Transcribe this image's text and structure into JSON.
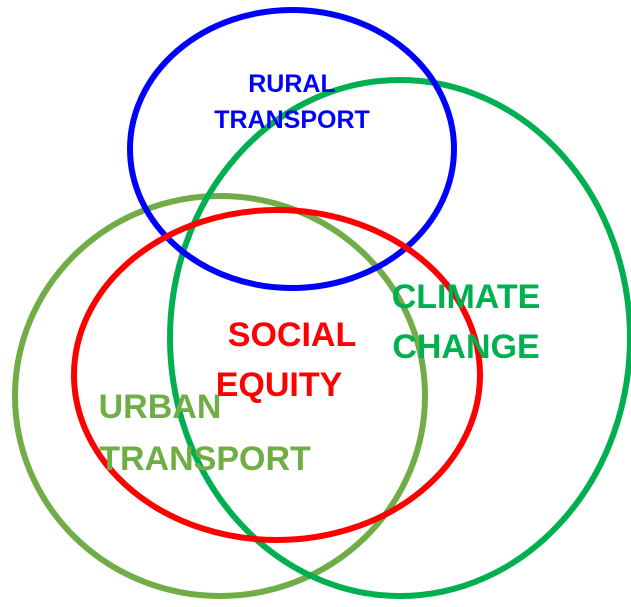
{
  "nodes": [
    {
      "label_lines": [
        "RURAL",
        "TRANSPORT"
      ]
    },
    {
      "label_lines": [
        "CLIMATE",
        "CHANGE"
      ]
    },
    {
      "label_lines": [
        "SOCIAL",
        "EQUITY"
      ]
    },
    {
      "label_lines": [
        "URBAN",
        "TRANSPORT"
      ]
    }
  ]
}
